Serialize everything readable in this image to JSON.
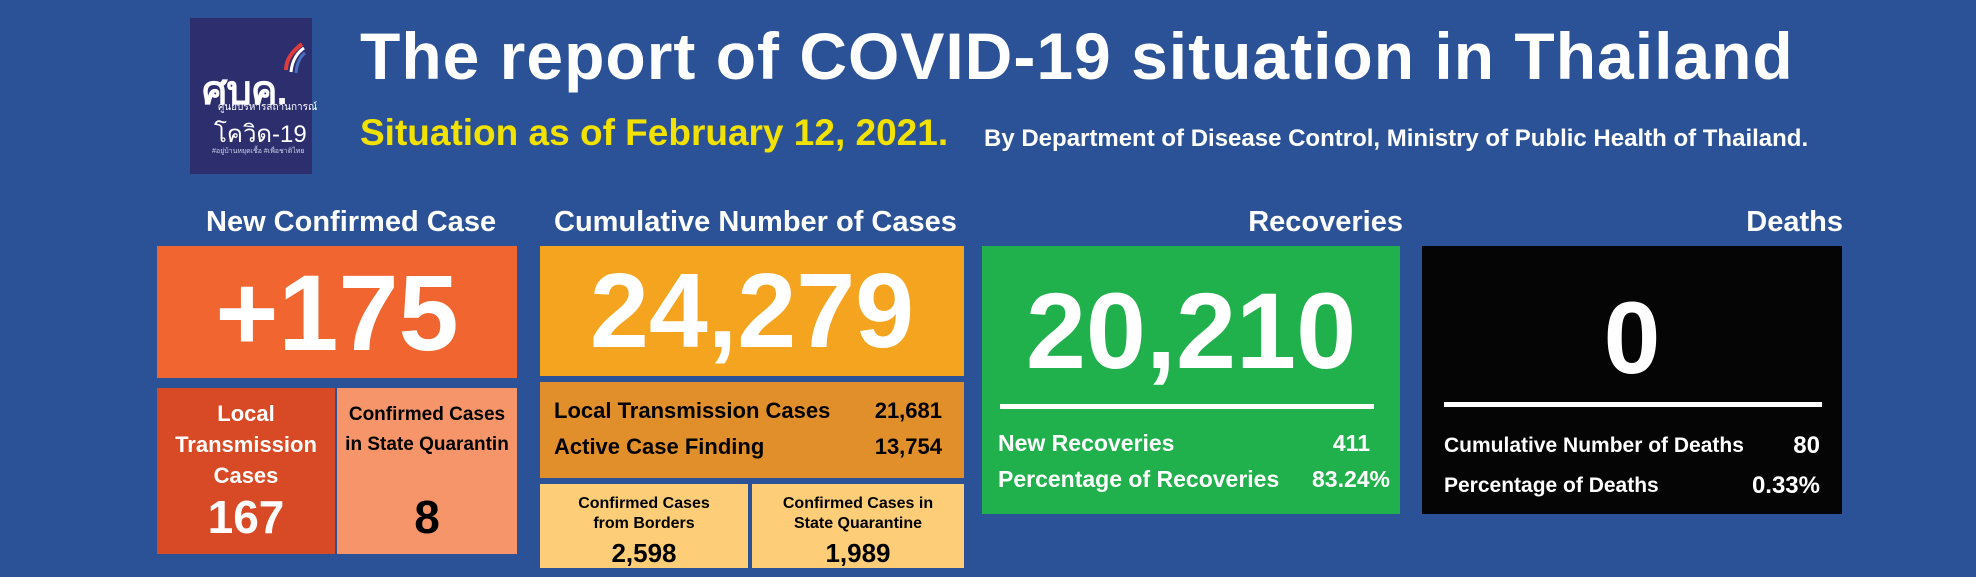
{
  "logo": {
    "mark": "ศบค.",
    "line1": "ศูนย์บริหารสถานการณ์",
    "line2": "โควิด-19",
    "line3": "#อยู่บ้านหยุดเชื้อ #เพื่อชาติไทย",
    "colors": {
      "bg": "#2c2e6e",
      "red": "#e03b3b",
      "navy": "#2b5196"
    }
  },
  "header": {
    "title": "The report of COVID-19 situation in Thailand",
    "subtitle": "Situation as of February 12, 2021.",
    "byline": "By Department of Disease Control, Ministry of Public Health of Thailand."
  },
  "new_confirmed": {
    "header": "New Confirmed Case",
    "value": "+175",
    "local": {
      "label": "Local Transmission Cases",
      "value": "167"
    },
    "state_quarantine": {
      "label": "Confirmed Cases in State Quarantin",
      "value": "8"
    }
  },
  "cumulative": {
    "header": "Cumulative Number of Cases",
    "value": "24,279",
    "local_transmission": {
      "label": "Local Transmission Cases",
      "value": "21,681"
    },
    "active_case_finding": {
      "label": "Active Case Finding",
      "value": "13,754"
    },
    "borders": {
      "label": "Confirmed Cases from Borders",
      "value": "2,598"
    },
    "state_quarantine": {
      "label": "Confirmed Cases in State Quarantine",
      "value": "1,989"
    }
  },
  "recoveries": {
    "header": "Recoveries",
    "value": "20,210",
    "new": {
      "label": "New Recoveries",
      "value": "411"
    },
    "percentage": {
      "label": "Percentage of Recoveries",
      "value": "83.24%"
    }
  },
  "deaths": {
    "header": "Deaths",
    "value": "0",
    "cumulative": {
      "label": "Cumulative Number of Deaths",
      "value": "80"
    },
    "percentage": {
      "label": "Percentage of Deaths",
      "value": "0.33%"
    }
  }
}
